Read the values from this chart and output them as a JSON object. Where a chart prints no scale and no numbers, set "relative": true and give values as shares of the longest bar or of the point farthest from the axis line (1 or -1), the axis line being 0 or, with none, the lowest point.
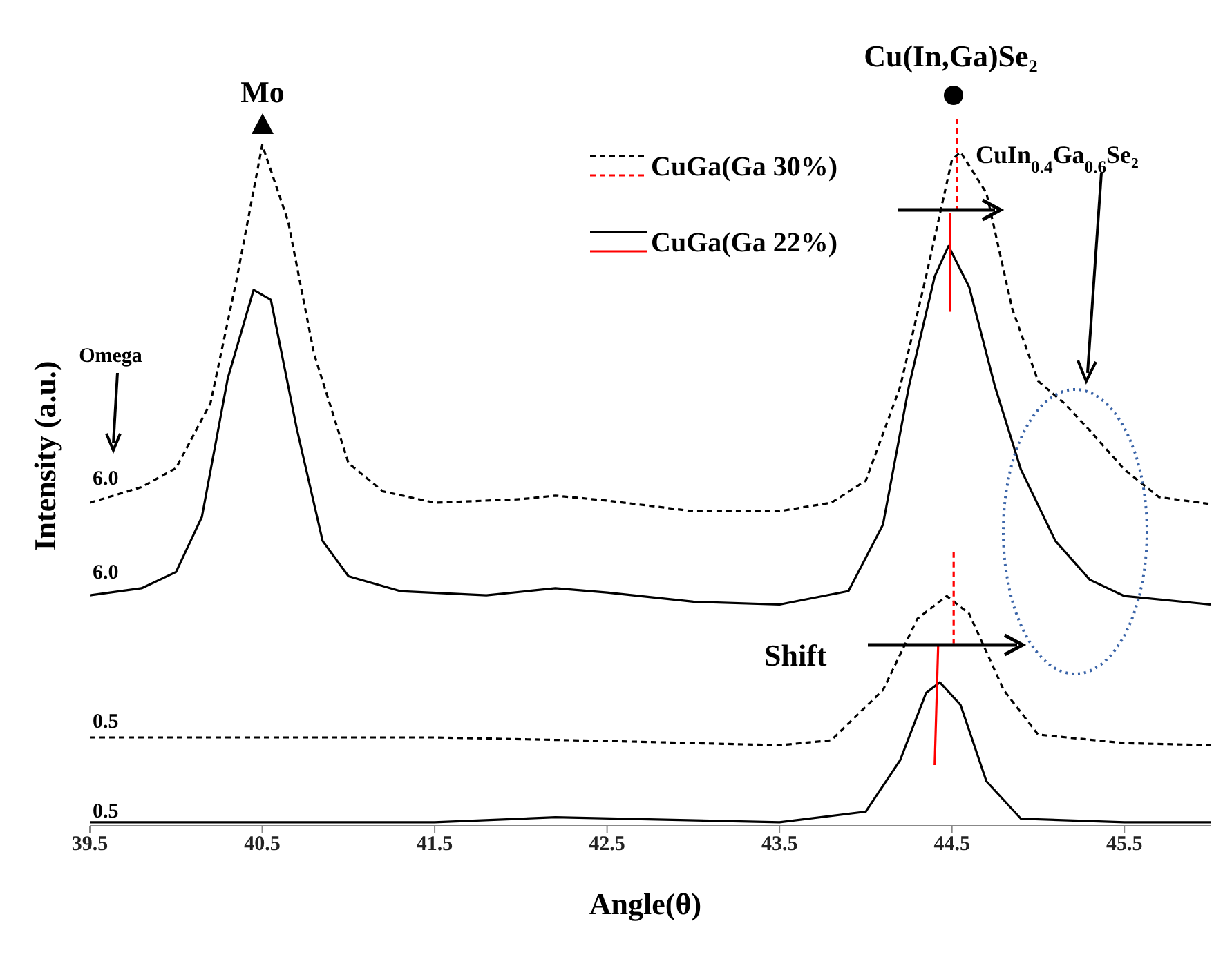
{
  "chart_data": {
    "type": "line",
    "relative": true,
    "xlabel": "Angle(θ)",
    "ylabel": "Intensity (a.u.)",
    "xlim": [
      39.5,
      46
    ],
    "xticks": [
      39.5,
      40.5,
      41.5,
      42.5,
      43.5,
      44.5,
      45.5
    ],
    "legend": "top",
    "grid": false,
    "marker": "none",
    "tick_labels": "x",
    "annotations": [
      "Mo",
      "Cu(In,Ga)Se₂",
      "CuIn$_{0.4}$Ga$_{0.6}$Se₂",
      "Shift",
      "Omega",
      "6.0",
      "6.0",
      "0.5",
      "0.5"
    ],
    "series": [
      {
        "name": "CuGa(Ga 30%)",
        "color": "#000000",
        "line_style": "dashed",
        "x": [
          39.5,
          39.8,
          40.0,
          40.2,
          40.35,
          40.5,
          40.65,
          40.8,
          41.0,
          41.2,
          41.5,
          42.0,
          42.2,
          42.5,
          43.0,
          43.5,
          43.8,
          44.0,
          44.2,
          44.35,
          44.5,
          44.55,
          44.7,
          44.85,
          45.0,
          45.15,
          45.3,
          45.5,
          45.7,
          46.0
        ],
        "values": [
          0.457,
          0.479,
          0.506,
          0.598,
          0.771,
          0.963,
          0.855,
          0.668,
          0.513,
          0.473,
          0.457,
          0.462,
          0.467,
          0.46,
          0.445,
          0.445,
          0.457,
          0.488,
          0.621,
          0.777,
          0.942,
          0.953,
          0.895,
          0.731,
          0.629,
          0.598,
          0.559,
          0.504,
          0.465,
          0.455
        ]
      },
      {
        "name": "CuGa(Ga 22%)",
        "color": "#000000",
        "line_style": "solid",
        "x": [
          39.5,
          39.8,
          40.0,
          40.15,
          40.3,
          40.45,
          40.55,
          40.7,
          40.85,
          41.0,
          41.3,
          41.8,
          42.2,
          42.5,
          43.0,
          43.5,
          43.9,
          44.1,
          44.25,
          44.4,
          44.48,
          44.6,
          44.75,
          44.9,
          45.1,
          45.3,
          45.5,
          46.0
        ],
        "values": [
          0.326,
          0.336,
          0.359,
          0.437,
          0.633,
          0.758,
          0.744,
          0.562,
          0.403,
          0.353,
          0.332,
          0.326,
          0.336,
          0.33,
          0.317,
          0.313,
          0.332,
          0.426,
          0.621,
          0.777,
          0.82,
          0.762,
          0.621,
          0.504,
          0.403,
          0.348,
          0.325,
          0.313
        ]
      },
      {
        "color": "#000000",
        "line_style": "dashed",
        "x": [
          39.5,
          40.5,
          41.5,
          42.5,
          43.5,
          43.8,
          44.1,
          44.3,
          44.47,
          44.6,
          44.8,
          45.0,
          45.5,
          46.0
        ],
        "values": [
          0.125,
          0.125,
          0.125,
          0.12,
          0.114,
          0.121,
          0.192,
          0.293,
          0.325,
          0.3,
          0.192,
          0.129,
          0.117,
          0.114
        ]
      },
      {
        "color": "#000000",
        "line_style": "solid",
        "x": [
          39.5,
          41.5,
          42.2,
          43.5,
          44.0,
          44.2,
          44.35,
          44.43,
          44.55,
          44.7,
          44.9,
          45.5,
          46.0
        ],
        "values": [
          0.005,
          0.005,
          0.012,
          0.005,
          0.02,
          0.093,
          0.188,
          0.203,
          0.171,
          0.063,
          0.01,
          0.005,
          0.005
        ]
      },
      {
        "color": "#ff0000",
        "line_style": "dashed",
        "x": [
          44.53,
          44.53
        ],
        "values": [
          1.0,
          0.871
        ]
      },
      {
        "color": "#ff0000",
        "line_style": "solid",
        "x": [
          44.49,
          44.49
        ],
        "values": [
          0.867,
          0.727
        ]
      },
      {
        "color": "#ff0000",
        "line_style": "dashed",
        "x": [
          44.51,
          44.51
        ],
        "values": [
          0.387,
          0.258
        ]
      },
      {
        "color": "#ff0000",
        "line_style": "solid",
        "x": [
          44.42,
          44.4
        ],
        "values": [
          0.254,
          0.086
        ]
      }
    ]
  }
}
